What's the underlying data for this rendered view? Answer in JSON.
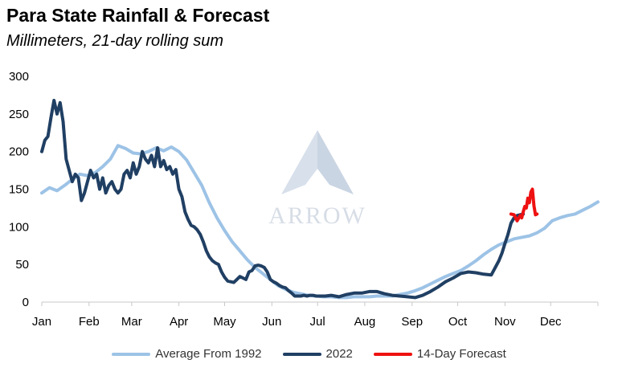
{
  "chart_data": {
    "type": "line",
    "title": "Para State Rainfall & Forecast",
    "subtitle": "Millimeters, 21-day rolling sum",
    "watermark": "ARROW",
    "ylim": [
      0,
      300
    ],
    "yticks": [
      0,
      50,
      100,
      150,
      200,
      250,
      300
    ],
    "xlim": [
      0,
      365
    ],
    "xticks": [
      {
        "label": "Jan",
        "day": 0
      },
      {
        "label": "Feb",
        "day": 31
      },
      {
        "label": "Mar",
        "day": 59
      },
      {
        "label": "Apr",
        "day": 90
      },
      {
        "label": "May",
        "day": 120
      },
      {
        "label": "Jun",
        "day": 151
      },
      {
        "label": "Jul",
        "day": 181
      },
      {
        "label": "Aug",
        "day": 212
      },
      {
        "label": "Sep",
        "day": 243
      },
      {
        "label": "Oct",
        "day": 273
      },
      {
        "label": "Nov",
        "day": 304
      },
      {
        "label": "Dec",
        "day": 334
      }
    ],
    "series": [
      {
        "name": "Average From 1992",
        "color": "#9dc3e6",
        "x": [
          0,
          5,
          10,
          15,
          20,
          25,
          30,
          35,
          40,
          45,
          50,
          55,
          60,
          65,
          70,
          75,
          80,
          85,
          90,
          95,
          100,
          105,
          110,
          115,
          120,
          125,
          130,
          135,
          140,
          145,
          150,
          155,
          160,
          165,
          170,
          175,
          180,
          185,
          190,
          195,
          200,
          205,
          210,
          215,
          220,
          225,
          230,
          235,
          240,
          245,
          250,
          255,
          260,
          265,
          270,
          275,
          280,
          285,
          290,
          295,
          300,
          305,
          310,
          315,
          320,
          325,
          330,
          335,
          340,
          345,
          350,
          355,
          360,
          365
        ],
        "y": [
          145,
          152,
          148,
          155,
          163,
          170,
          168,
          172,
          180,
          190,
          208,
          204,
          198,
          197,
          200,
          205,
          201,
          206,
          200,
          189,
          172,
          155,
          132,
          112,
          95,
          80,
          68,
          56,
          46,
          38,
          30,
          22,
          17,
          13,
          11,
          9,
          8,
          7,
          7,
          6,
          6,
          7,
          7,
          7,
          8,
          8,
          8,
          10,
          12,
          15,
          19,
          24,
          29,
          34,
          38,
          42,
          48,
          55,
          63,
          70,
          76,
          80,
          84,
          86,
          88,
          92,
          98,
          108,
          112,
          115,
          117,
          122,
          127,
          133
        ]
      },
      {
        "name": "2022",
        "color": "#203f63",
        "x": [
          0,
          2,
          4,
          6,
          8,
          10,
          12,
          14,
          16,
          18,
          20,
          22,
          24,
          26,
          28,
          30,
          32,
          34,
          36,
          38,
          40,
          42,
          44,
          46,
          48,
          50,
          52,
          54,
          56,
          58,
          60,
          62,
          64,
          66,
          68,
          70,
          72,
          74,
          76,
          78,
          80,
          82,
          84,
          86,
          88,
          90,
          92,
          94,
          96,
          98,
          100,
          102,
          104,
          106,
          108,
          110,
          112,
          114,
          116,
          118,
          120,
          122,
          124,
          126,
          128,
          130,
          132,
          134,
          136,
          138,
          140,
          142,
          144,
          146,
          148,
          150,
          152,
          154,
          156,
          158,
          160,
          162,
          164,
          166,
          168,
          170,
          172,
          174,
          176,
          178,
          180,
          182,
          184,
          186,
          190,
          195,
          200,
          205,
          210,
          215,
          220,
          225,
          230,
          235,
          240,
          245,
          250,
          255,
          260,
          265,
          270,
          275,
          280,
          285,
          290,
          295,
          300,
          302,
          304,
          306,
          308,
          310,
          312,
          314,
          316
        ],
        "y": [
          200,
          215,
          220,
          245,
          268,
          250,
          265,
          240,
          190,
          175,
          160,
          170,
          165,
          135,
          145,
          160,
          175,
          165,
          170,
          150,
          165,
          145,
          155,
          160,
          150,
          145,
          150,
          170,
          175,
          165,
          185,
          170,
          180,
          200,
          190,
          185,
          195,
          180,
          205,
          180,
          188,
          176,
          180,
          170,
          176,
          150,
          140,
          120,
          110,
          102,
          100,
          96,
          90,
          80,
          68,
          60,
          55,
          52,
          50,
          40,
          33,
          28,
          27,
          26,
          30,
          34,
          32,
          30,
          40,
          42,
          48,
          49,
          48,
          46,
          40,
          30,
          27,
          25,
          22,
          20,
          19,
          15,
          12,
          8,
          8,
          8,
          9,
          8,
          9,
          9,
          8,
          8,
          8,
          8,
          9,
          7,
          10,
          12,
          12,
          14,
          14,
          11,
          9,
          8,
          7,
          6,
          9,
          14,
          20,
          27,
          32,
          38,
          40,
          39,
          37,
          36,
          55,
          65,
          78,
          90,
          105,
          112,
          115,
          116,
          117
        ]
      },
      {
        "name": "14-Day Forecast",
        "color": "#ee1111",
        "x": [
          308,
          310,
          312,
          314,
          315,
          316,
          317,
          318,
          319,
          320,
          321,
          322,
          323,
          324,
          325
        ],
        "y": [
          117,
          116,
          108,
          115,
          112,
          120,
          127,
          125,
          138,
          132,
          146,
          150,
          128,
          116,
          117
        ]
      }
    ]
  }
}
